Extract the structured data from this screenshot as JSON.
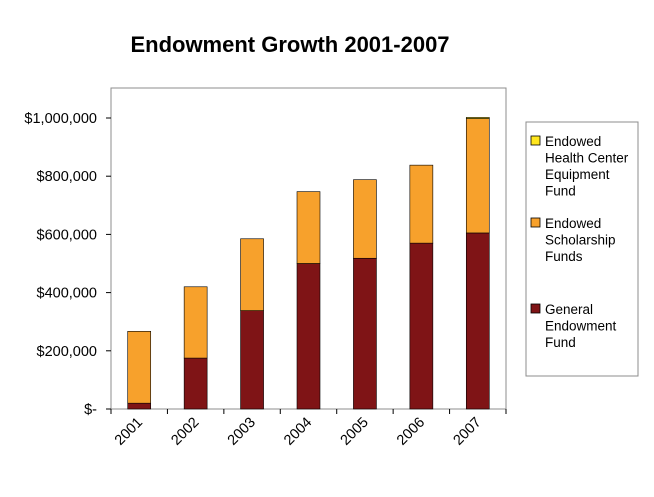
{
  "chart_data": {
    "type": "bar",
    "stacked": true,
    "title": "Endowment Growth 2001-2007",
    "xlabel": "",
    "ylabel": "",
    "categories": [
      "2001",
      "2002",
      "2003",
      "2004",
      "2005",
      "2006",
      "2007"
    ],
    "series": [
      {
        "name": "General Endowment Fund",
        "color": "#7f1416",
        "values": [
          20000,
          175000,
          338000,
          500000,
          518000,
          570000,
          605000
        ]
      },
      {
        "name": "Endowed Scholarship Funds",
        "color": "#f7a12c",
        "values": [
          247000,
          245000,
          247000,
          247000,
          270000,
          268000,
          393000
        ]
      },
      {
        "name": "Endowed Health Center Equipment Fund",
        "color": "#ffe61e",
        "values": [
          0,
          0,
          0,
          0,
          0,
          0,
          4000
        ]
      }
    ],
    "ylim": [
      0,
      1000000
    ],
    "y_ticks": [
      0,
      200000,
      400000,
      600000,
      800000,
      1000000
    ],
    "y_tick_labels": [
      "$-",
      "$200,000",
      "$400,000",
      "$600,000",
      "$800,000",
      "$1,000,000"
    ],
    "grid": false,
    "legend_position": "right",
    "legend": [
      {
        "lines": [
          "Endowed",
          "Health Center",
          "Equipment",
          "Fund"
        ],
        "color": "#ffe61e"
      },
      {
        "lines": [
          "Endowed",
          "Scholarship",
          "Funds"
        ],
        "color": "#f7a12c"
      },
      {
        "lines": [
          "General",
          "Endowment",
          "Fund"
        ],
        "color": "#7f1416"
      }
    ]
  }
}
